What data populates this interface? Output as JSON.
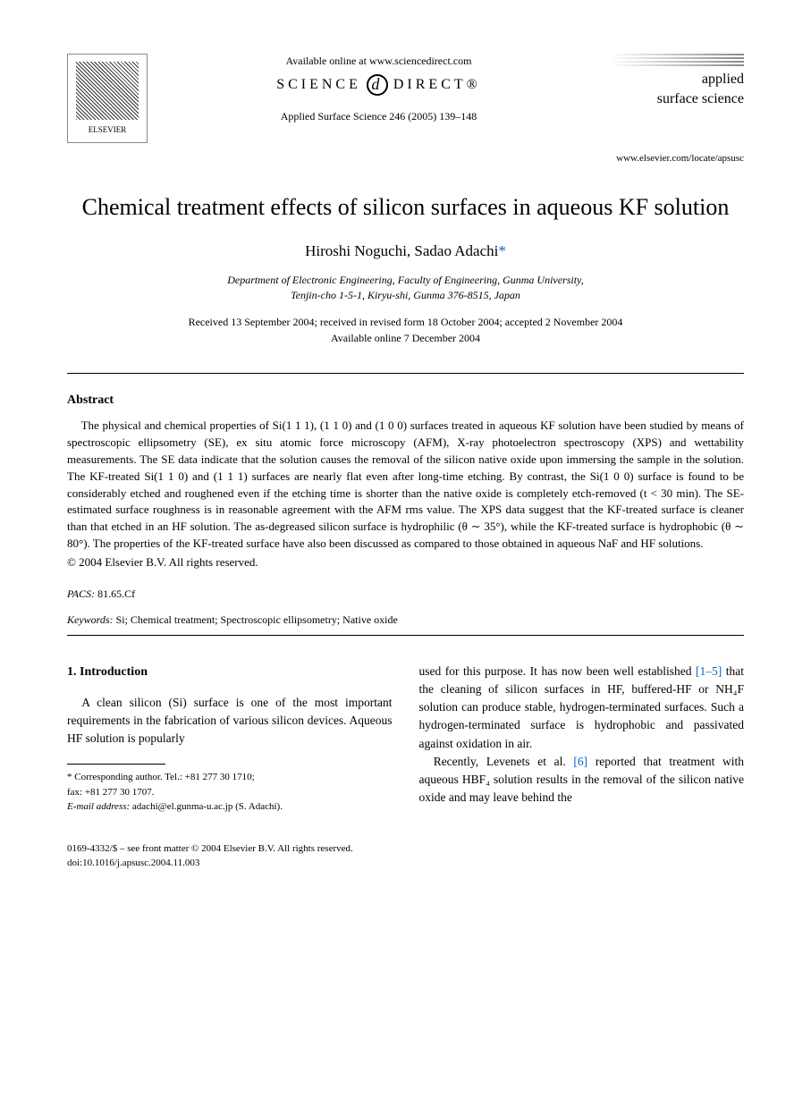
{
  "header": {
    "publisher": "ELSEVIER",
    "available_online": "Available online at www.sciencedirect.com",
    "sciencedirect_left": "SCIENCE",
    "sciencedirect_right": "DIRECT®",
    "journal_name_1": "applied",
    "journal_name_2": "surface science",
    "journal_ref": "Applied Surface Science 246 (2005) 139–148",
    "journal_url": "www.elsevier.com/locate/apsusc"
  },
  "title": "Chemical treatment effects of silicon surfaces in aqueous KF solution",
  "authors": {
    "a1": "Hiroshi Noguchi",
    "a2": "Sadao Adachi",
    "corr": "*"
  },
  "affiliation": {
    "line1": "Department of Electronic Engineering, Faculty of Engineering, Gunma University,",
    "line2": "Tenjin-cho 1-5-1, Kiryu-shi, Gunma 376-8515, Japan"
  },
  "dates": {
    "line1": "Received 13 September 2004; received in revised form 18 October 2004; accepted 2 November 2004",
    "line2": "Available online 7 December 2004"
  },
  "abstract": {
    "heading": "Abstract",
    "text": "The physical and chemical properties of Si(1 1 1), (1 1 0) and (1 0 0) surfaces treated in aqueous KF solution have been studied by means of spectroscopic ellipsometry (SE), ex situ atomic force microscopy (AFM), X-ray photoelectron spectroscopy (XPS) and wettability measurements. The SE data indicate that the solution causes the removal of the silicon native oxide upon immersing the sample in the solution. The KF-treated Si(1 1 0) and (1 1 1) surfaces are nearly flat even after long-time etching. By contrast, the Si(1 0 0) surface is found to be considerably etched and roughened even if the etching time is shorter than the native oxide is completely etch-removed (t < 30 min). The SE-estimated surface roughness is in reasonable agreement with the AFM rms value. The XPS data suggest that the KF-treated surface is cleaner than that etched in an HF solution. The as-degreased silicon surface is hydrophilic (θ ∼ 35°), while the KF-treated surface is hydrophobic (θ ∼ 80°). The properties of the KF-treated surface have also been discussed as compared to those obtained in aqueous NaF and HF solutions.",
    "copyright": "© 2004 Elsevier B.V. All rights reserved."
  },
  "pacs": {
    "label": "PACS:",
    "value": "81.65.Cf"
  },
  "keywords": {
    "label": "Keywords:",
    "value": "Si; Chemical treatment; Spectroscopic ellipsometry; Native oxide"
  },
  "section1": {
    "heading": "1. Introduction",
    "para1": "A clean silicon (Si) surface is one of the most important requirements in the fabrication of various silicon devices. Aqueous HF solution is popularly",
    "para2a": "used for this purpose. It has now been well established ",
    "para2_ref": "[1–5]",
    "para2b": " that the cleaning of silicon surfaces in HF, buffered-HF or NH₄F solution can produce stable, hydrogen-terminated surfaces. Such a hydrogen-terminated surface is hydrophobic and passivated against oxidation in air.",
    "para3a": "Recently, Levenets et al. ",
    "para3_ref": "[6]",
    "para3b": " reported that treatment with aqueous HBF₄ solution results in the removal of the silicon native oxide and may leave behind the"
  },
  "footnote": {
    "corr_label": "* Corresponding author. Tel.: +81 277 30 1710;",
    "fax": "fax: +81 277 30 1707.",
    "email_label": "E-mail address:",
    "email": "adachi@el.gunma-u.ac.jp (S. Adachi)."
  },
  "footer": {
    "line1": "0169-4332/$ – see front matter © 2004 Elsevier B.V. All rights reserved.",
    "line2": "doi:10.1016/j.apsusc.2004.11.003"
  }
}
